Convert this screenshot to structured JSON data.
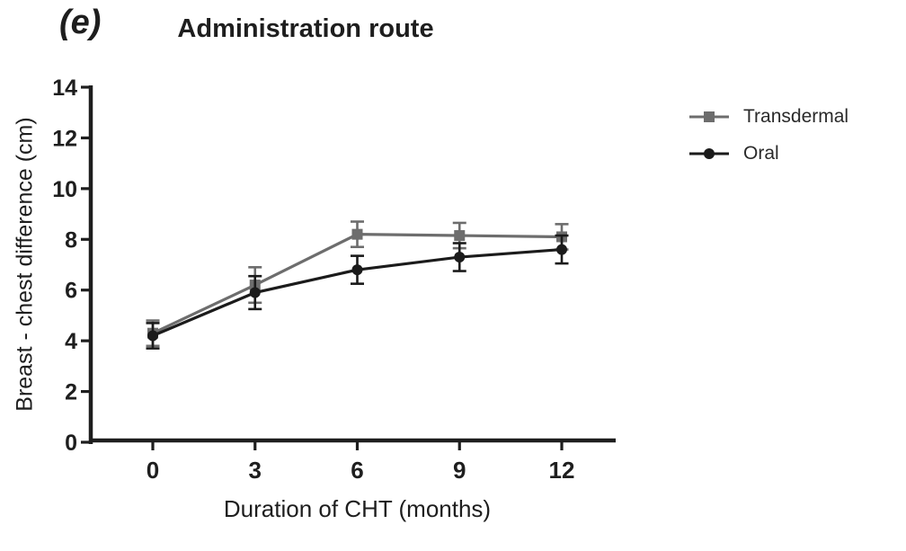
{
  "chart_data": {
    "type": "line",
    "panel_label": "(e)",
    "title": "Administration route",
    "xlabel": "Duration of CHT (months)",
    "ylabel": "Breast - chest difference (cm)",
    "x": [
      0,
      3,
      6,
      9,
      12
    ],
    "xticks": [
      "0",
      "3",
      "6",
      "9",
      "12"
    ],
    "yticks": [
      "0",
      "2",
      "4",
      "6",
      "8",
      "10",
      "12",
      "14"
    ],
    "xlim": [
      0,
      13.6
    ],
    "ylim": [
      0,
      14
    ],
    "grid": false,
    "legend_position": "right-outside",
    "axis_color": "#1e1e1e",
    "background_color": "#ffffff",
    "series": [
      {
        "name": "Transdermal",
        "marker": "square",
        "color": "#6d6d6d",
        "values": [
          4.3,
          6.2,
          8.2,
          8.15,
          8.1
        ],
        "errors": [
          0.5,
          0.7,
          0.5,
          0.5,
          0.5
        ]
      },
      {
        "name": "Oral",
        "marker": "circle",
        "color": "#1b1b1b",
        "values": [
          4.2,
          5.9,
          6.8,
          7.3,
          7.6
        ],
        "errors": [
          0.5,
          0.65,
          0.55,
          0.55,
          0.55
        ]
      }
    ]
  }
}
